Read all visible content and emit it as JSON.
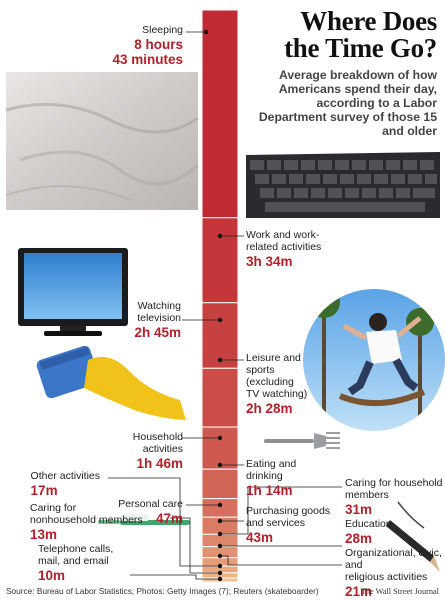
{
  "title_line1": "Where Does",
  "title_line2": "the Time Go?",
  "subtitle": "Average breakdown of how Americans spend their day, according to a Labor Department survey of those 15 and older",
  "source": "Source: Bureau of Labor Statistics; Photos: Getty Images (7); Reuters (skateboarder)",
  "credit": "The Wall Street Journal",
  "colors": {
    "top": "#c02a33",
    "bottom": "#f0c08e",
    "value": "#b3202a"
  },
  "chart_data": {
    "type": "bar",
    "orientation": "stacked-vertical",
    "unit": "minutes",
    "total_minutes": 1440,
    "segments": [
      {
        "label": "Sleeping",
        "display": "8 hours 43 minutes",
        "minutes": 523
      },
      {
        "label": "Work and work-related activities",
        "display": "3h 34m",
        "minutes": 214
      },
      {
        "label": "Watching television",
        "display": "2h 45m",
        "minutes": 165
      },
      {
        "label": "Leisure and sports (excluding TV watching)",
        "display": "2h 28m",
        "minutes": 148
      },
      {
        "label": "Household activities",
        "display": "1h 46m",
        "minutes": 106
      },
      {
        "label": "Eating and drinking",
        "display": "1h 14m",
        "minutes": 74
      },
      {
        "label": "Personal care",
        "display": "47m",
        "minutes": 47
      },
      {
        "label": "Purchasing goods and services",
        "display": "43m",
        "minutes": 43
      },
      {
        "label": "Caring for household members",
        "display": "31m",
        "minutes": 31
      },
      {
        "label": "Education",
        "display": "28m",
        "minutes": 28
      },
      {
        "label": "Organizational, civic, and religious activities",
        "display": "21m",
        "minutes": 21
      },
      {
        "label": "Other activities",
        "display": "17m",
        "minutes": 17
      },
      {
        "label": "Caring for nonhousehold members",
        "display": "13m",
        "minutes": 13
      },
      {
        "label": "Telephone calls, mail, and email",
        "display": "10m",
        "minutes": 10
      }
    ]
  },
  "labels": {
    "sleeping": {
      "l1": "Sleeping",
      "v1": "8 hours",
      "v2": "43 minutes"
    },
    "work": {
      "l1": "Work and work-",
      "l2": "related activities",
      "v": "3h 34m"
    },
    "tv": {
      "l1": "Watching",
      "l2": "television",
      "v": "2h 45m"
    },
    "leisure": {
      "l1": "Leisure and",
      "l2": "sports",
      "l3": "(excluding",
      "l4": "TV watching)",
      "v": "2h 28m"
    },
    "household": {
      "l1": "Household",
      "l2": "activities",
      "v": "1h 46m"
    },
    "eating": {
      "l1": "Eating and",
      "l2": "drinking",
      "v": "1h 14m"
    },
    "personal": {
      "l1": "Personal care",
      "v": "47m"
    },
    "purchasing": {
      "l1": "Purchasing goods",
      "l2": "and services",
      "v": "43m"
    },
    "caring_hh": {
      "l1": "Caring for household",
      "l2": "members",
      "v": "31m"
    },
    "education": {
      "l1": "Education",
      "v": "28m"
    },
    "org": {
      "l1": "Organizational, civic, and",
      "l2": "religious activities",
      "v": "21m"
    },
    "other": {
      "l1": "Other activities",
      "v": "17m"
    },
    "caring_non": {
      "l1": "Caring for",
      "l2": "nonhousehold members",
      "v": "13m"
    },
    "phone": {
      "l1": "Telephone calls,",
      "l2": "mail, and email",
      "v": "10m"
    }
  },
  "illustrations": [
    "bed-sheets-photo",
    "laptop-keyboard-photo",
    "television-photo",
    "skateboarder-photo",
    "sponge-glove-photo",
    "fork-photo",
    "toothbrush-photo",
    "pencil-photo"
  ]
}
